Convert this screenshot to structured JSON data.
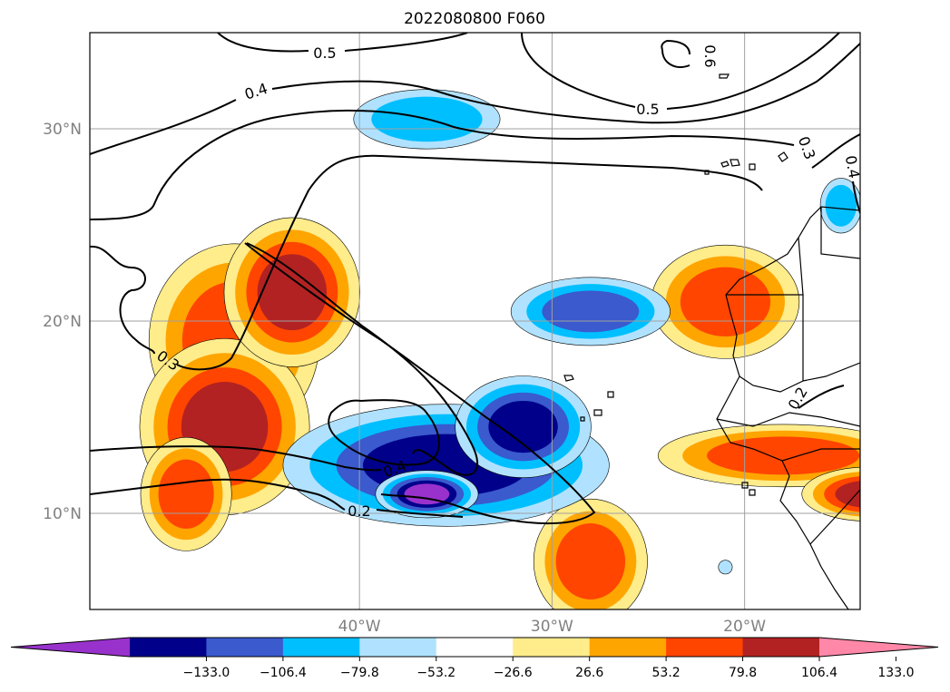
{
  "chart_data": {
    "type": "contour-map",
    "title": "2022080800 F060",
    "projection": "cylindrical",
    "extent": {
      "lon": [
        -50,
        10
      ],
      "lat": [
        5,
        35
      ]
    },
    "grid": true,
    "lon_ticks": [
      {
        "value": -40,
        "label": "40°W"
      },
      {
        "value": -30,
        "label": "30°W"
      },
      {
        "value": -20,
        "label": "20°W"
      }
    ],
    "lat_ticks": [
      {
        "value": 30,
        "label": "30°N"
      },
      {
        "value": 20,
        "label": "20°N"
      },
      {
        "value": 10,
        "label": "10°N"
      }
    ],
    "colorbar": {
      "orientation": "horizontal",
      "extend": "both",
      "bins": [
        {
          "color": "#9932CC",
          "from": null,
          "to": -133.0
        },
        {
          "color": "#00008B",
          "from": -133.0,
          "to": -106.4
        },
        {
          "color": "#3A5ACD",
          "from": -106.4,
          "to": -79.8
        },
        {
          "color": "#00BFFF",
          "from": -79.8,
          "to": -53.2
        },
        {
          "color": "#B0E2FF",
          "from": -53.2,
          "to": -26.6
        },
        {
          "color": "#FFFFFF",
          "from": -26.6,
          "to": 26.6
        },
        {
          "color": "#FFEC8B",
          "from": 26.6,
          "to": 53.2
        },
        {
          "color": "#FFA500",
          "from": 53.2,
          "to": 79.8
        },
        {
          "color": "#FF4500",
          "from": 79.8,
          "to": 106.4
        },
        {
          "color": "#B22222",
          "from": 106.4,
          "to": 133.0
        },
        {
          "color": "#FF88A8",
          "from": 133.0,
          "to": null
        }
      ],
      "tick_labels": [
        "−133.0",
        "−106.4",
        "−79.8",
        "−53.2",
        "−26.6",
        "26.6",
        "53.2",
        "79.8",
        "106.4",
        "133.0"
      ]
    },
    "contour_labels": [
      "0.5",
      "0.4",
      "0.6",
      "0.5",
      "0.3",
      "0.4",
      "0.3",
      "0.4",
      "0.2",
      "0.2"
    ],
    "anomaly_cells": [
      {
        "lon": -46.5,
        "lat": 19.0,
        "rx": 3.0,
        "ry": 3.4,
        "value": 90
      },
      {
        "lon": -47.0,
        "lat": 14.5,
        "rx": 2.5,
        "ry": 2.6,
        "value": 112
      },
      {
        "lon": -49.0,
        "lat": 11.0,
        "rx": 1.6,
        "ry": 2.0,
        "value": 85
      },
      {
        "lon": -43.5,
        "lat": 21.5,
        "rx": 2.0,
        "ry": 2.2,
        "value": 115
      },
      {
        "lon": -21.0,
        "lat": 21.0,
        "rx": 2.6,
        "ry": 2.0,
        "value": 90
      },
      {
        "lon": -28.0,
        "lat": 7.5,
        "rx": 2.0,
        "ry": 2.2,
        "value": 85
      },
      {
        "lon": -18.0,
        "lat": 13.0,
        "rx": 4.4,
        "ry": 1.1,
        "value": 85
      },
      {
        "lon": -13.5,
        "lat": 11.0,
        "rx": 2.0,
        "ry": 0.8,
        "value": 110
      },
      {
        "lon": -35.5,
        "lat": 12.5,
        "rx": 4.8,
        "ry": 1.8,
        "value": -115
      },
      {
        "lon": -31.5,
        "lat": 14.5,
        "rx": 2.0,
        "ry": 1.5,
        "value": -125
      },
      {
        "lon": -36.5,
        "lat": 11.0,
        "rx": 1.3,
        "ry": 0.6,
        "value": -140
      },
      {
        "lon": -28.0,
        "lat": 20.5,
        "rx": 2.8,
        "ry": 1.2,
        "value": -90
      },
      {
        "lon": -36.5,
        "lat": 30.5,
        "rx": 3.2,
        "ry": 1.3,
        "value": -60
      },
      {
        "lon": -15.0,
        "lat": 26.0,
        "rx": 0.9,
        "ry": 1.2,
        "value": -60
      },
      {
        "lon": -21.0,
        "lat": 7.2,
        "rx": 0.4,
        "ry": 0.4,
        "value": -40
      }
    ]
  }
}
